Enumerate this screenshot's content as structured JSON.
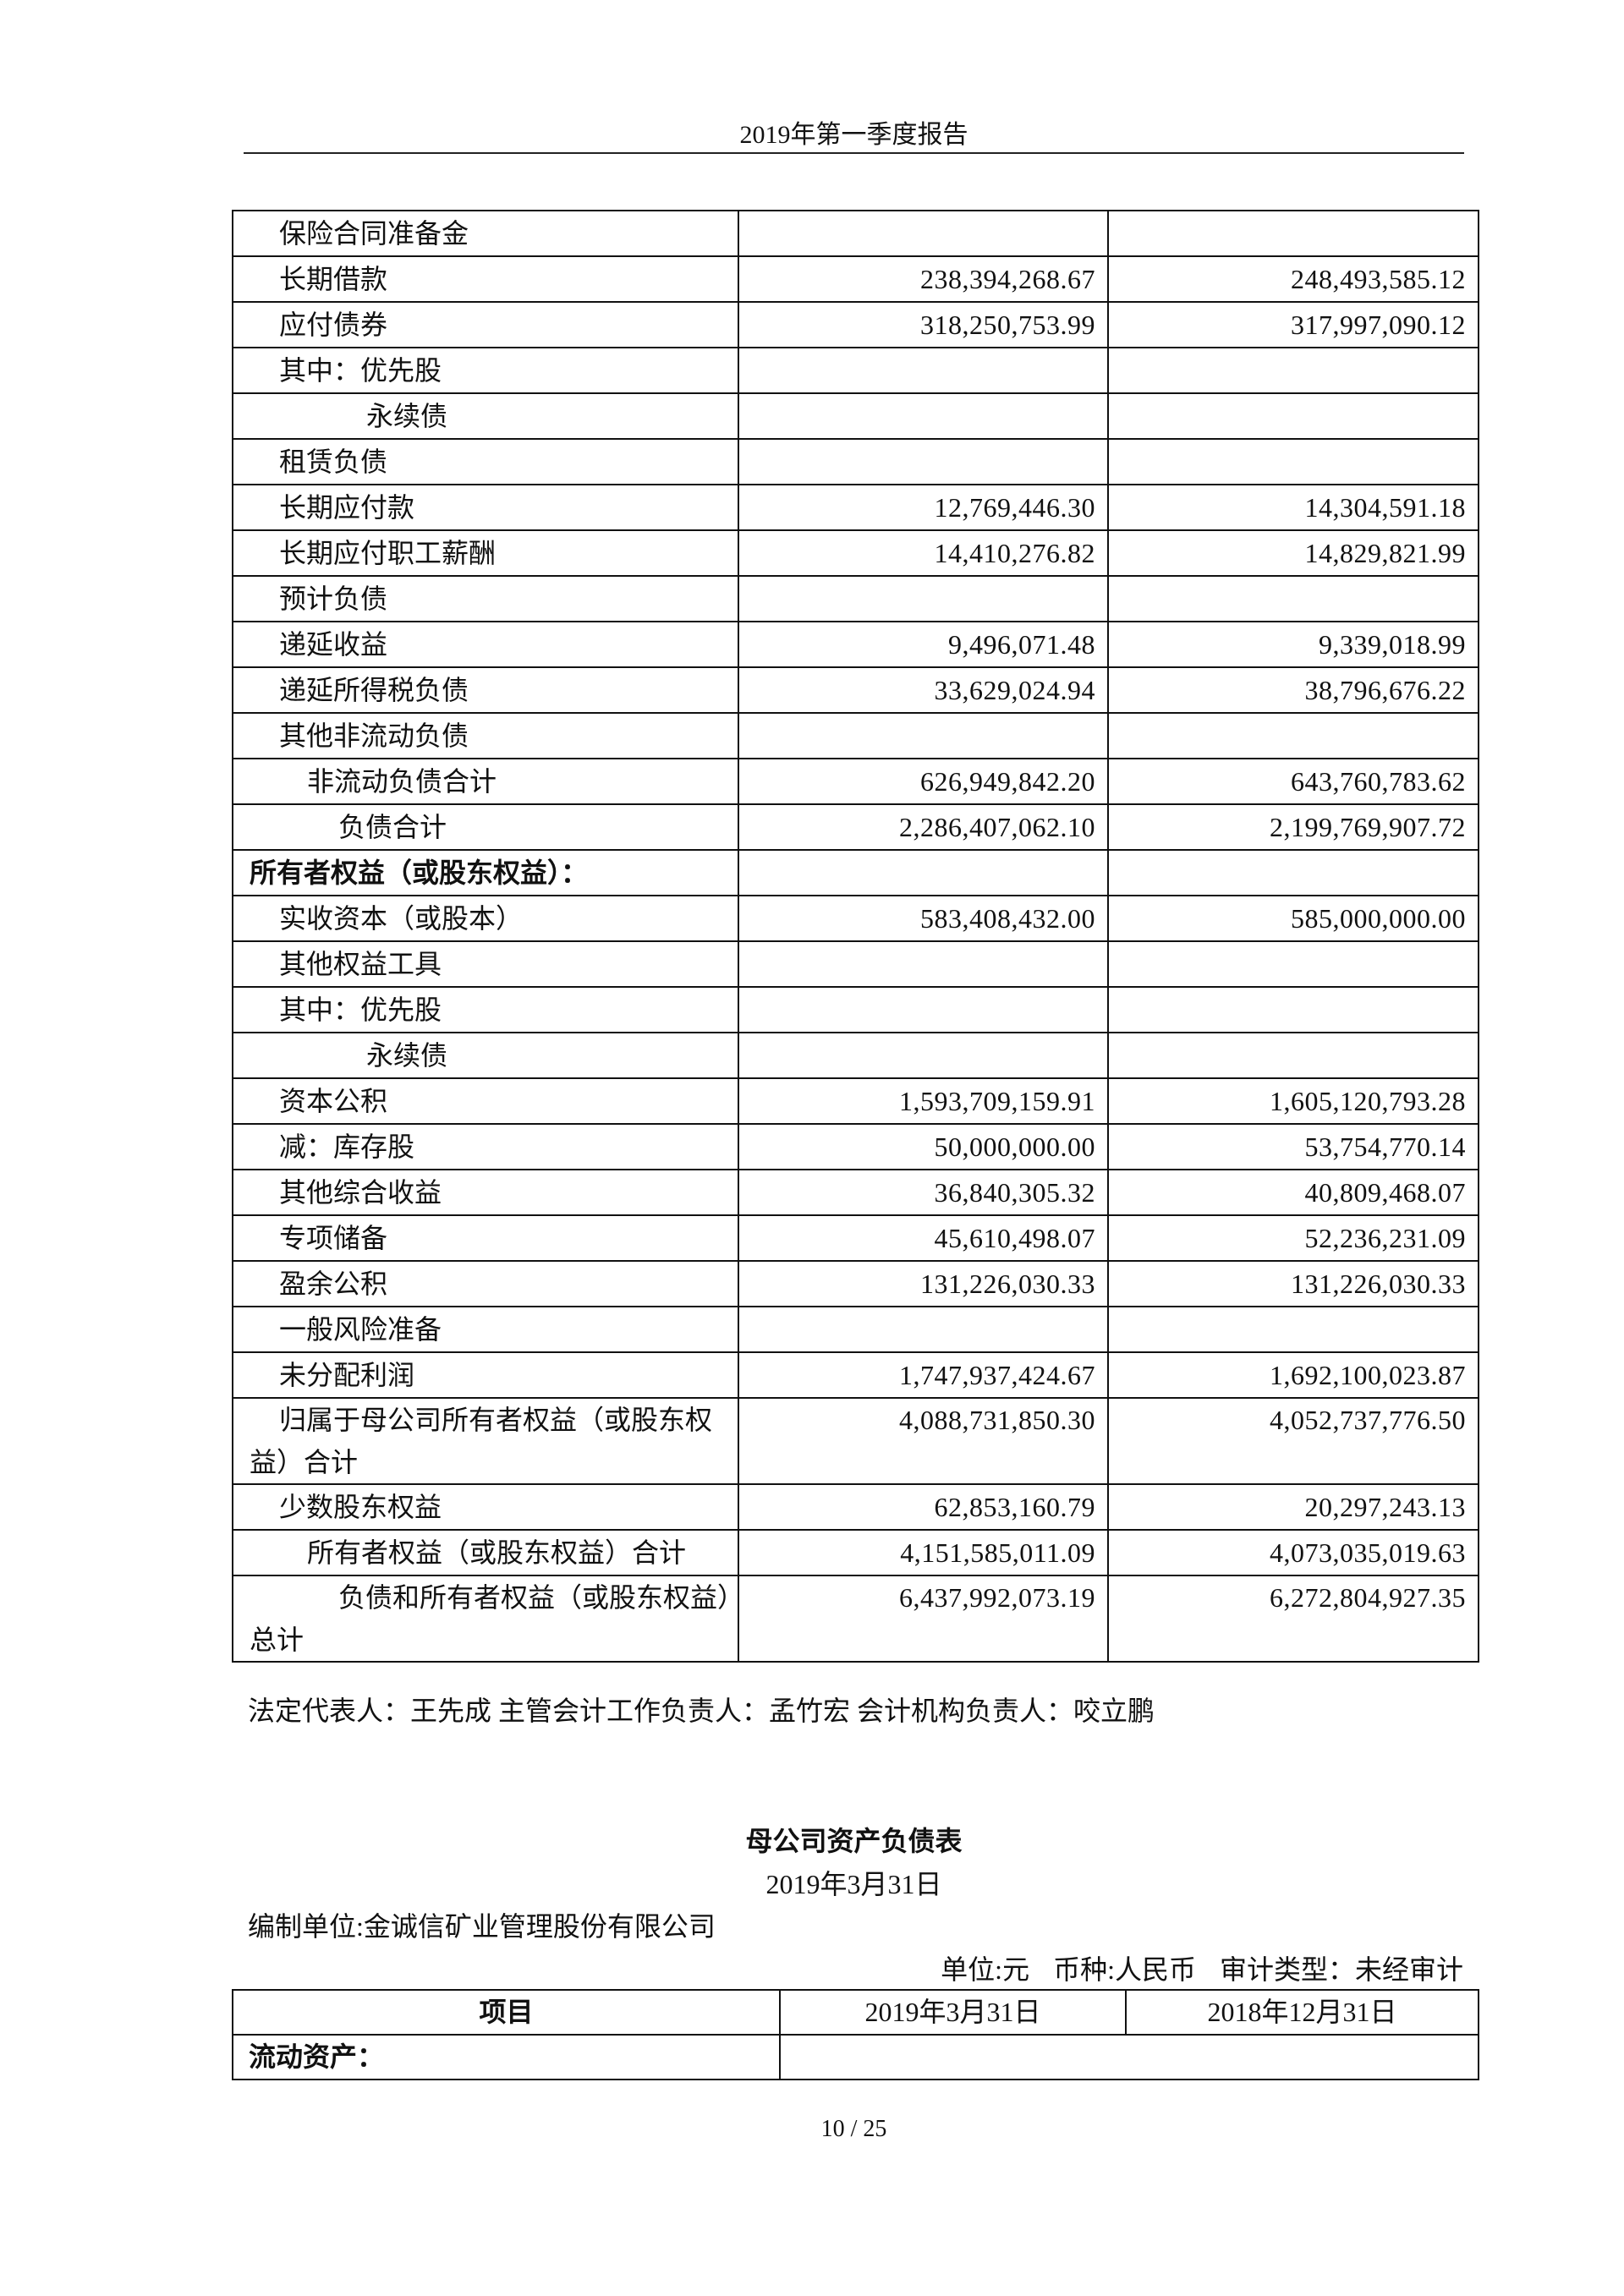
{
  "header": {
    "title": "2019年第一季度报告"
  },
  "balance_sheet_continued": {
    "rows": [
      {
        "label": "保险合同准备金",
        "current": "",
        "previous": ""
      },
      {
        "label": "长期借款",
        "current": "238,394,268.67",
        "previous": "248,493,585.12"
      },
      {
        "label": "应付债券",
        "current": "318,250,753.99",
        "previous": "317,997,090.12"
      },
      {
        "label": "其中：优先股",
        "current": "",
        "previous": ""
      },
      {
        "label": "永续债",
        "current": "",
        "previous": ""
      },
      {
        "label": "租赁负债",
        "current": "",
        "previous": ""
      },
      {
        "label": "长期应付款",
        "current": "12,769,446.30",
        "previous": "14,304,591.18"
      },
      {
        "label": "长期应付职工薪酬",
        "current": "14,410,276.82",
        "previous": "14,829,821.99"
      },
      {
        "label": "预计负债",
        "current": "",
        "previous": ""
      },
      {
        "label": "递延收益",
        "current": "9,496,071.48",
        "previous": "9,339,018.99"
      },
      {
        "label": "递延所得税负债",
        "current": "33,629,024.94",
        "previous": "38,796,676.22"
      },
      {
        "label": "其他非流动负债",
        "current": "",
        "previous": ""
      },
      {
        "label": "非流动负债合计",
        "current": "626,949,842.20",
        "previous": "643,760,783.62"
      },
      {
        "label": "负债合计",
        "current": "2,286,407,062.10",
        "previous": "2,199,769,907.72"
      },
      {
        "label": "所有者权益（或股东权益）：",
        "current": "",
        "previous": ""
      },
      {
        "label": "实收资本（或股本）",
        "current": "583,408,432.00",
        "previous": "585,000,000.00"
      },
      {
        "label": "其他权益工具",
        "current": "",
        "previous": ""
      },
      {
        "label": "其中：优先股",
        "current": "",
        "previous": ""
      },
      {
        "label": "永续债",
        "current": "",
        "previous": ""
      },
      {
        "label": "资本公积",
        "current": "1,593,709,159.91",
        "previous": "1,605,120,793.28"
      },
      {
        "label": "减：库存股",
        "current": "50,000,000.00",
        "previous": "53,754,770.14"
      },
      {
        "label": "其他综合收益",
        "current": "36,840,305.32",
        "previous": "40,809,468.07"
      },
      {
        "label": "专项储备",
        "current": "45,610,498.07",
        "previous": "52,236,231.09"
      },
      {
        "label": "盈余公积",
        "current": "131,226,030.33",
        "previous": "131,226,030.33"
      },
      {
        "label": "一般风险准备",
        "current": "",
        "previous": ""
      },
      {
        "label": "未分配利润",
        "current": "1,747,937,424.67",
        "previous": "1,692,100,023.87"
      },
      {
        "label": "归属于母公司所有者权益（或股东权益）合计",
        "current": "4,088,731,850.30",
        "previous": "4,052,737,776.50"
      },
      {
        "label": "少数股东权益",
        "current": "62,853,160.79",
        "previous": "20,297,243.13"
      },
      {
        "label": "所有者权益（或股东权益）合计",
        "current": "4,151,585,011.09",
        "previous": "4,073,035,019.63"
      },
      {
        "label": "负债和所有者权益（或股东权益）总计",
        "current": "6,437,992,073.19",
        "previous": "6,272,804,927.35"
      }
    ]
  },
  "signatures": "法定代表人：王先成 主管会计工作负责人：孟竹宏 会计机构负责人：咬立鹏",
  "parent_sheet": {
    "title": "母公司资产负债表",
    "date": "2019年3月31日",
    "org": "编制单位:金诚信矿业管理股份有限公司",
    "unit": "单位:元",
    "currency": "币种:人民币",
    "audit": "审计类型：未经审计",
    "columns": [
      "项目",
      "2019年3月31日",
      "2018年12月31日"
    ],
    "first_row": "流动资产："
  },
  "page_number": "10 / 25"
}
